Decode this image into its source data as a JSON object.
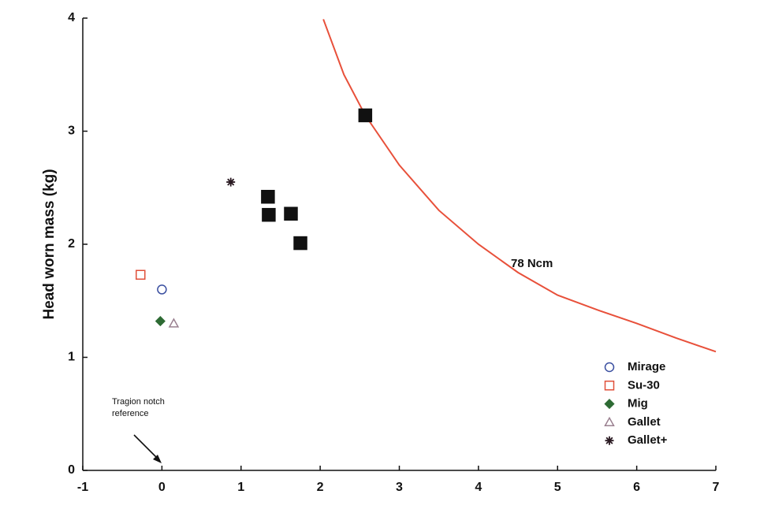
{
  "chart_data": {
    "type": "scatter",
    "y_label": "Head worn mass (kg)",
    "xlim": [
      -1,
      7
    ],
    "xticks": [
      -1,
      0,
      1,
      2,
      3,
      4,
      5,
      6,
      7
    ],
    "ylim": [
      0,
      4
    ],
    "yticks": [
      0,
      1,
      2,
      3,
      4
    ],
    "grid": false,
    "legend": "lower right",
    "series": [
      {
        "name": "Mirage",
        "color": "#3a4fa0",
        "marker": "circle",
        "filled": false,
        "x": [
          0
        ],
        "values": [
          1.6
        ]
      },
      {
        "name": "Su-30",
        "color": "#e0503a",
        "marker": "square",
        "filled": false,
        "x": [
          -0.27
        ],
        "values": [
          1.73
        ]
      },
      {
        "name": "Mig",
        "color": "#2e6b34",
        "marker": "diamond",
        "filled": true,
        "x": [
          -0.02
        ],
        "values": [
          1.32
        ]
      },
      {
        "name": "Gallet",
        "color": "#9a8090",
        "marker": "triangle",
        "filled": false,
        "x": [
          0.15
        ],
        "values": [
          1.3
        ]
      },
      {
        "name": "Gallet+",
        "color": "#2a1a22",
        "marker": "asterisk",
        "filled": false,
        "x": [
          0.87
        ],
        "values": [
          2.55
        ]
      },
      {
        "color": "#111111",
        "marker": "square",
        "filled": true,
        "x": [
          1.34,
          1.35,
          1.63,
          1.75,
          2.57
        ],
        "values": [
          2.42,
          2.26,
          2.27,
          2.01,
          3.14
        ]
      }
    ],
    "curve": {
      "color": "#e8503a",
      "x": [
        2.04,
        2.3,
        2.57,
        3,
        3.5,
        4,
        4.5,
        5,
        5.5,
        6,
        6.5,
        7
      ],
      "values": [
        3.99,
        3.5,
        3.14,
        2.7,
        2.3,
        2.0,
        1.75,
        1.55,
        1.42,
        1.3,
        1.17,
        1.05
      ]
    },
    "curve_label": "78 Ncm",
    "annotation": [
      "Tragion notch",
      "reference"
    ]
  }
}
